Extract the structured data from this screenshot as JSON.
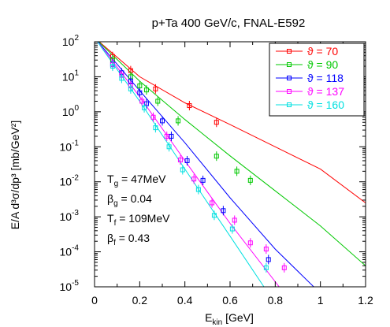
{
  "chart_data": {
    "type": "scatter",
    "title": "p+Ta 400 GeV/c, FNAL-E592",
    "ylabel": "E/A d³σ/dp³ [mb/GeV²]",
    "xlabel_main": "E",
    "xlabel_sub": "kin",
    "xlabel_tail": " [GeV]",
    "x_scale": "linear",
    "y_scale": "log",
    "xlim": [
      0,
      1.2
    ],
    "ylim": [
      1e-05,
      100
    ],
    "x_ticks": [
      "0",
      "0.2",
      "0.4",
      "0.6",
      "0.8",
      "1",
      "1.2"
    ],
    "x_tick_values": [
      0,
      0.2,
      0.4,
      0.6,
      0.8,
      1.0,
      1.2
    ],
    "y_ticks": [
      {
        "base": "10",
        "exp": "2",
        "value": 100
      },
      {
        "base": "10",
        "exp": "1",
        "value": 10
      },
      {
        "base": "10",
        "exp": "0",
        "value": 1
      },
      {
        "base": "10",
        "exp": "-1",
        "value": 0.1
      },
      {
        "base": "10",
        "exp": "-2",
        "value": 0.01
      },
      {
        "base": "10",
        "exp": "-3",
        "value": 0.001
      },
      {
        "base": "10",
        "exp": "-4",
        "value": 0.0001
      },
      {
        "base": "10",
        "exp": "-5",
        "value": 1e-05
      }
    ],
    "grid": false,
    "legend_position": "top-right",
    "legend_symbol": "ϑ",
    "annotations": [
      {
        "main": "T",
        "sub": "g",
        "tail": " = 47MeV"
      },
      {
        "main": "β",
        "sub": "g",
        "tail": " = 0.04"
      },
      {
        "main": "T",
        "sub": "f",
        "tail": " = 109MeV"
      },
      {
        "main": "β",
        "sub": "f",
        "tail": " = 0.43"
      }
    ],
    "series": [
      {
        "name": "70",
        "color": "#ff0000",
        "points": [
          [
            0.08,
            38
          ],
          [
            0.16,
            15
          ],
          [
            0.27,
            4.5
          ],
          [
            0.42,
            1.5
          ],
          [
            0.54,
            0.5
          ]
        ],
        "fit": [
          [
            0,
            130
          ],
          [
            0.2,
            10
          ],
          [
            0.4,
            1.8
          ],
          [
            0.6,
            0.43
          ],
          [
            0.8,
            0.1
          ],
          [
            1.0,
            0.023
          ],
          [
            1.2,
            0.0025
          ]
        ]
      },
      {
        "name": "90",
        "color": "#00c800",
        "points": [
          [
            0.08,
            30
          ],
          [
            0.16,
            10
          ],
          [
            0.2,
            5.5
          ],
          [
            0.23,
            4.2
          ],
          [
            0.28,
            2.0
          ],
          [
            0.37,
            0.55
          ],
          [
            0.54,
            0.054
          ],
          [
            0.63,
            0.02
          ],
          [
            0.69,
            0.011
          ]
        ],
        "fit": [
          [
            0,
            130
          ],
          [
            0.2,
            7.5
          ],
          [
            0.4,
            0.6
          ],
          [
            0.6,
            0.055
          ],
          [
            0.8,
            0.0055
          ],
          [
            1.0,
            0.00055
          ],
          [
            1.2,
            4e-05
          ]
        ]
      },
      {
        "name": "118",
        "color": "#0000ff",
        "points": [
          [
            0.08,
            23
          ],
          [
            0.12,
            13
          ],
          [
            0.16,
            7.5
          ],
          [
            0.2,
            3.5
          ],
          [
            0.23,
            1.7
          ],
          [
            0.3,
            0.55
          ],
          [
            0.34,
            0.2
          ],
          [
            0.41,
            0.04
          ],
          [
            0.48,
            0.011
          ],
          [
            0.57,
            0.0015
          ],
          [
            0.77,
            6e-05
          ]
        ],
        "fit": [
          [
            0,
            130
          ],
          [
            0.2,
            4.0
          ],
          [
            0.4,
            0.13
          ],
          [
            0.6,
            0.0035
          ],
          [
            0.8,
            0.00012
          ],
          [
            1.0,
            6.5e-06
          ],
          [
            1.02,
            5e-06
          ]
        ]
      },
      {
        "name": "137",
        "color": "#ff00ff",
        "points": [
          [
            0.08,
            22
          ],
          [
            0.12,
            11
          ],
          [
            0.16,
            5.5
          ],
          [
            0.21,
            2.0
          ],
          [
            0.26,
            0.7
          ],
          [
            0.32,
            0.2
          ],
          [
            0.38,
            0.042
          ],
          [
            0.44,
            0.012
          ],
          [
            0.52,
            0.0025
          ],
          [
            0.62,
            0.0008
          ],
          [
            0.69,
            0.00018
          ],
          [
            0.76,
            0.00012
          ],
          [
            0.84,
            3.5e-05
          ]
        ],
        "fit": [
          [
            0,
            130
          ],
          [
            0.2,
            2.7
          ],
          [
            0.4,
            0.04
          ],
          [
            0.6,
            0.00065
          ],
          [
            0.8,
            1.4e-05
          ],
          [
            0.9,
            2e-06
          ]
        ]
      },
      {
        "name": "160",
        "color": "#00e0e0",
        "points": [
          [
            0.08,
            20
          ],
          [
            0.12,
            9
          ],
          [
            0.16,
            4.5
          ],
          [
            0.22,
            1.3
          ],
          [
            0.27,
            0.35
          ],
          [
            0.33,
            0.1
          ],
          [
            0.39,
            0.022
          ],
          [
            0.46,
            0.006
          ],
          [
            0.53,
            0.0011
          ],
          [
            0.61,
            0.00045
          ],
          [
            0.76,
            3.5e-05
          ]
        ],
        "fit": [
          [
            0,
            130
          ],
          [
            0.2,
            2.0
          ],
          [
            0.4,
            0.023
          ],
          [
            0.6,
            0.00028
          ],
          [
            0.8,
            3.3e-06
          ],
          [
            0.83,
            2e-06
          ]
        ]
      }
    ]
  }
}
